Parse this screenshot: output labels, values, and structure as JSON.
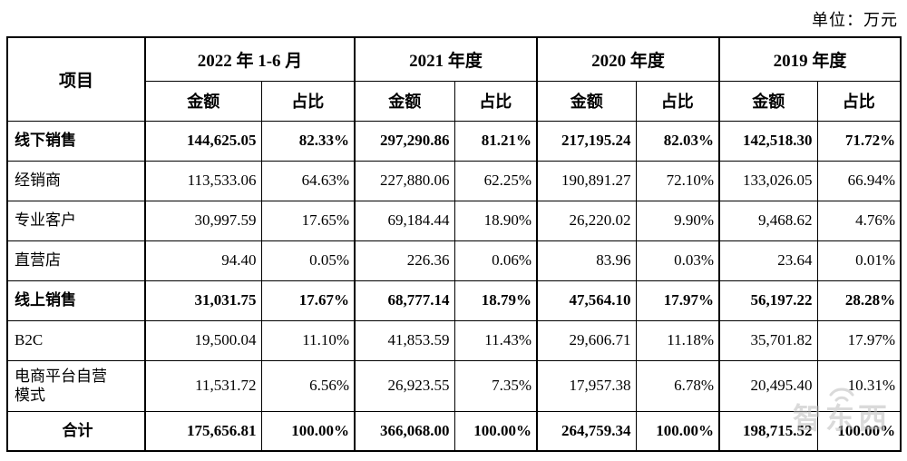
{
  "unit_label": "单位：万元",
  "watermark": {
    "text": "智东西"
  },
  "table": {
    "project_header": "项目",
    "periods": [
      {
        "label": "2022 年 1-6 月"
      },
      {
        "label": "2021 年度"
      },
      {
        "label": "2020 年度"
      },
      {
        "label": "2019 年度"
      }
    ],
    "sub_headers": {
      "amount": "金额",
      "ratio": "占比"
    },
    "rows": [
      {
        "label": "线下销售",
        "emphasis": true,
        "tall": false,
        "center": false,
        "values": [
          "144,625.05",
          "82.33%",
          "297,290.86",
          "81.21%",
          "217,195.24",
          "82.03%",
          "142,518.30",
          "71.72%"
        ]
      },
      {
        "label": "经销商",
        "emphasis": false,
        "tall": false,
        "center": false,
        "values": [
          "113,533.06",
          "64.63%",
          "227,880.06",
          "62.25%",
          "190,891.27",
          "72.10%",
          "133,026.05",
          "66.94%"
        ]
      },
      {
        "label": "专业客户",
        "emphasis": false,
        "tall": false,
        "center": false,
        "values": [
          "30,997.59",
          "17.65%",
          "69,184.44",
          "18.90%",
          "26,220.02",
          "9.90%",
          "9,468.62",
          "4.76%"
        ]
      },
      {
        "label": "直营店",
        "emphasis": false,
        "tall": false,
        "center": false,
        "values": [
          "94.40",
          "0.05%",
          "226.36",
          "0.06%",
          "83.96",
          "0.03%",
          "23.64",
          "0.01%"
        ]
      },
      {
        "label": "线上销售",
        "emphasis": true,
        "tall": false,
        "center": false,
        "values": [
          "31,031.75",
          "17.67%",
          "68,777.14",
          "18.79%",
          "47,564.10",
          "17.97%",
          "56,197.22",
          "28.28%"
        ]
      },
      {
        "label": "B2C",
        "emphasis": false,
        "tall": false,
        "center": false,
        "values": [
          "19,500.04",
          "11.10%",
          "41,853.59",
          "11.43%",
          "29,606.71",
          "11.18%",
          "35,701.82",
          "17.97%"
        ]
      },
      {
        "label": "电商平台自营模式",
        "emphasis": false,
        "tall": true,
        "center": false,
        "values": [
          "11,531.72",
          "6.56%",
          "26,923.55",
          "7.35%",
          "17,957.38",
          "6.78%",
          "20,495.40",
          "10.31%"
        ]
      },
      {
        "label": "合计",
        "emphasis": true,
        "tall": false,
        "center": true,
        "values": [
          "175,656.81",
          "100.00%",
          "366,068.00",
          "100.00%",
          "264,759.34",
          "100.00%",
          "198,715.52",
          "100.00%"
        ]
      }
    ]
  }
}
